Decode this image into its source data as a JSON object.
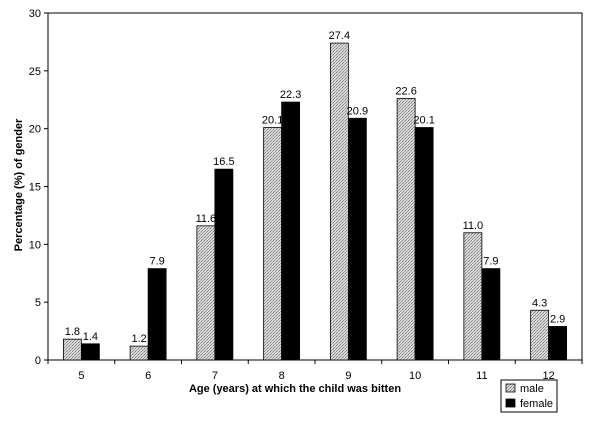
{
  "chart_data": {
    "type": "bar",
    "title": "",
    "xlabel": "Age (years) at which the child was bitten",
    "ylabel": "Percentage (%) of gender",
    "ylim": [
      0,
      30
    ],
    "yticks": [
      0,
      5,
      10,
      15,
      20,
      25,
      30
    ],
    "categories": [
      "5",
      "6",
      "7",
      "8",
      "9",
      "10",
      "11",
      "12"
    ],
    "series": [
      {
        "name": "male",
        "values": [
          1.8,
          1.2,
          11.6,
          20.1,
          27.4,
          22.6,
          11.0,
          4.3
        ],
        "value_labels": [
          "1.8",
          "1.2",
          "11.6",
          "20.1",
          "27.4",
          "22.6",
          "11.0",
          "4.3"
        ],
        "fill": "hatched-grey"
      },
      {
        "name": "female",
        "values": [
          1.4,
          7.9,
          16.5,
          22.3,
          20.9,
          20.1,
          7.9,
          2.9
        ],
        "value_labels": [
          "1.4",
          "7.9",
          "16.5",
          "22.3",
          "20.9",
          "20.1",
          "7.9",
          "2.9"
        ],
        "fill": "#000000"
      }
    ],
    "grid": false,
    "legend_position": "bottom-right"
  }
}
